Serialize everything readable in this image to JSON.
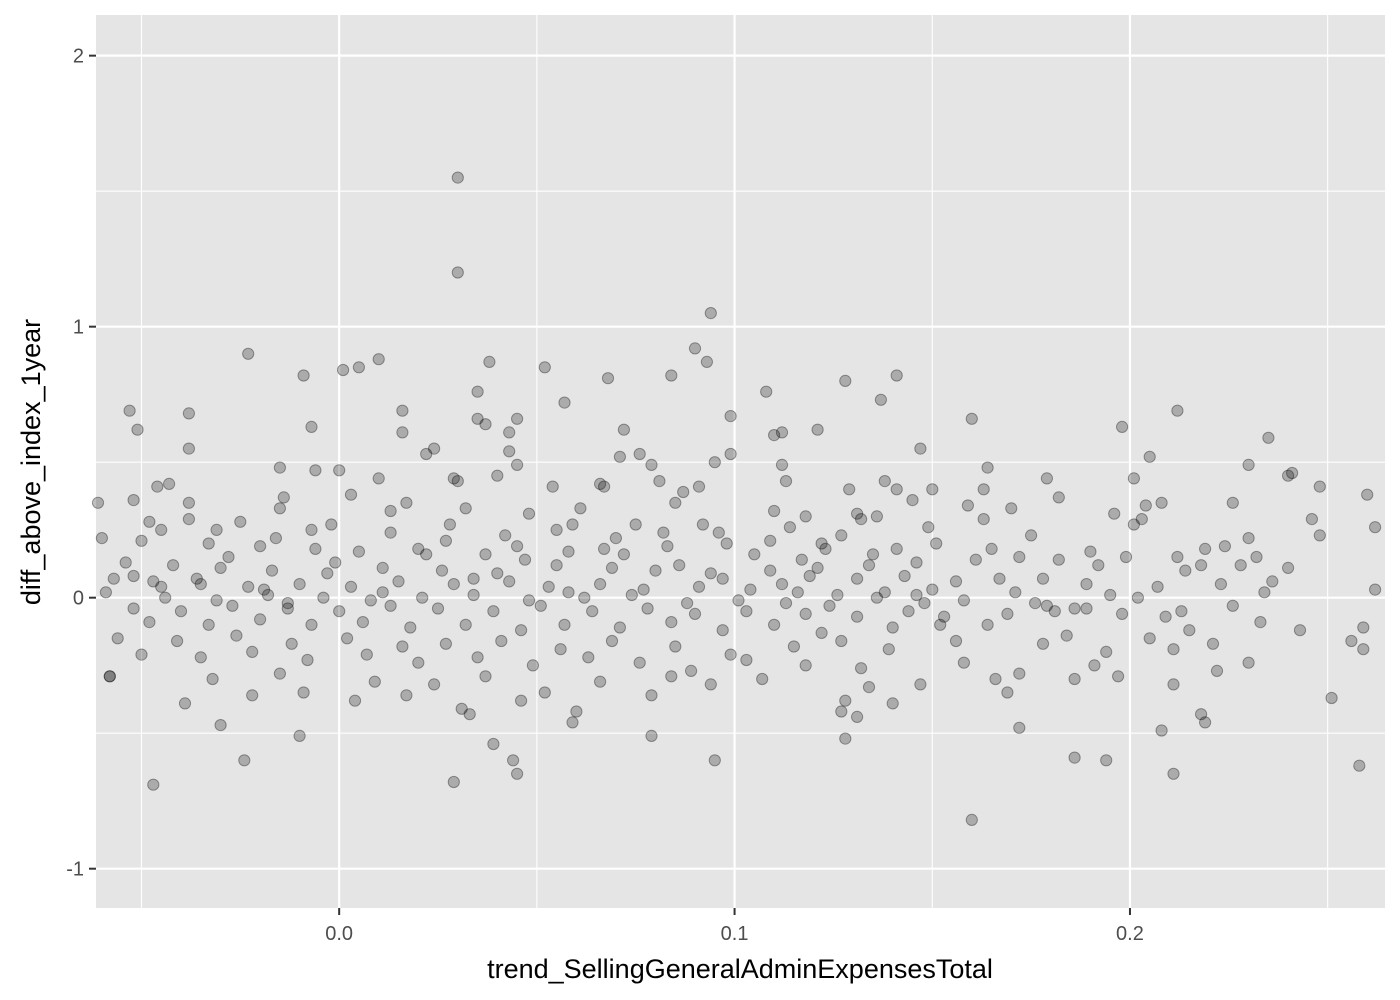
{
  "chart_data": {
    "type": "scatter",
    "xlabel": "trend_SellingGeneralAdminExpensesTotal",
    "ylabel": "diff_above_index_1year",
    "xlim": [
      -0.0615,
      0.2645
    ],
    "ylim": [
      -1.145,
      2.15
    ],
    "x_ticks": [
      0.0,
      0.1,
      0.2
    ],
    "x_tick_labels": [
      "0.0",
      "0.1",
      "0.2"
    ],
    "y_ticks": [
      -1,
      0,
      1,
      2
    ],
    "y_tick_labels": [
      "-1",
      "0",
      "1",
      "2"
    ],
    "grid": true,
    "legend": "none",
    "colors": {
      "panel_background": "#e5e5e5",
      "grid_line": "#ffffff",
      "point": "#000000",
      "tick_label": "#4d4d4d"
    },
    "point_alpha": 0.25,
    "points": [
      [
        0.03,
        1.55
      ],
      [
        0.03,
        1.2
      ],
      [
        0.094,
        1.05
      ],
      [
        0.09,
        0.92
      ],
      [
        0.093,
        0.87
      ],
      [
        -0.023,
        0.9
      ],
      [
        0.01,
        0.88
      ],
      [
        0.005,
        0.85
      ],
      [
        0.001,
        0.84
      ],
      [
        -0.009,
        0.82
      ],
      [
        0.052,
        0.85
      ],
      [
        0.084,
        0.82
      ],
      [
        0.068,
        0.81
      ],
      [
        0.128,
        0.8
      ],
      [
        0.141,
        0.82
      ],
      [
        0.038,
        0.87
      ],
      [
        0.035,
        0.76
      ],
      [
        0.108,
        0.76
      ],
      [
        0.137,
        0.73
      ],
      [
        0.057,
        0.72
      ],
      [
        0.016,
        0.69
      ],
      [
        0.212,
        0.69
      ],
      [
        -0.038,
        0.68
      ],
      [
        -0.053,
        0.69
      ],
      [
        0.035,
        0.66
      ],
      [
        0.045,
        0.66
      ],
      [
        0.099,
        0.67
      ],
      [
        0.16,
        0.66
      ],
      [
        -0.007,
        0.63
      ],
      [
        0.037,
        0.64
      ],
      [
        -0.051,
        0.62
      ],
      [
        0.016,
        0.61
      ],
      [
        0.043,
        0.61
      ],
      [
        0.072,
        0.62
      ],
      [
        0.112,
        0.61
      ],
      [
        0.11,
        0.6
      ],
      [
        0.121,
        0.62
      ],
      [
        0.198,
        0.63
      ],
      [
        0.235,
        0.59
      ],
      [
        0.022,
        0.53
      ],
      [
        0.024,
        0.55
      ],
      [
        -0.038,
        0.55
      ],
      [
        0.043,
        0.54
      ],
      [
        0.076,
        0.53
      ],
      [
        0.071,
        0.52
      ],
      [
        0.099,
        0.53
      ],
      [
        0.147,
        0.55
      ],
      [
        0.205,
        0.52
      ],
      [
        0.095,
        0.5
      ],
      [
        0.045,
        0.49
      ],
      [
        -0.015,
        0.48
      ],
      [
        -0.006,
        0.47
      ],
      [
        0.0,
        0.47
      ],
      [
        0.079,
        0.49
      ],
      [
        0.112,
        0.49
      ],
      [
        0.164,
        0.48
      ],
      [
        0.23,
        0.49
      ],
      [
        0.241,
        0.46
      ],
      [
        0.01,
        0.44
      ],
      [
        0.029,
        0.44
      ],
      [
        0.03,
        0.43
      ],
      [
        0.081,
        0.43
      ],
      [
        0.113,
        0.43
      ],
      [
        0.138,
        0.43
      ],
      [
        0.179,
        0.44
      ],
      [
        0.201,
        0.44
      ],
      [
        0.24,
        0.45
      ],
      [
        -0.046,
        0.41
      ],
      [
        -0.043,
        0.42
      ],
      [
        0.054,
        0.41
      ],
      [
        0.129,
        0.4
      ],
      [
        0.141,
        0.4
      ],
      [
        0.15,
        0.4
      ],
      [
        0.163,
        0.4
      ],
      [
        0.248,
        0.41
      ],
      [
        0.26,
        0.38
      ],
      [
        0.066,
        0.42
      ],
      [
        -0.014,
        0.37
      ],
      [
        0.003,
        0.38
      ],
      [
        0.087,
        0.39
      ],
      [
        -0.038,
        0.35
      ],
      [
        0.017,
        0.35
      ],
      [
        0.032,
        0.33
      ],
      [
        0.085,
        0.35
      ],
      [
        0.131,
        0.31
      ],
      [
        0.145,
        0.36
      ],
      [
        0.204,
        0.34
      ],
      [
        0.208,
        0.35
      ],
      [
        0.226,
        0.35
      ],
      [
        -0.052,
        0.36
      ],
      [
        -0.061,
        0.35
      ],
      [
        0.061,
        0.33
      ],
      [
        0.11,
        0.32
      ],
      [
        0.136,
        0.3
      ],
      [
        0.149,
        0.26
      ],
      [
        0.17,
        0.33
      ],
      [
        0.196,
        0.31
      ],
      [
        0.203,
        0.29
      ],
      [
        0.23,
        0.22
      ],
      [
        0.246,
        0.29
      ],
      [
        0.248,
        0.23
      ],
      [
        0.262,
        0.26
      ],
      [
        -0.045,
        0.25
      ],
      [
        -0.038,
        0.29
      ],
      [
        -0.025,
        0.28
      ],
      [
        -0.007,
        0.25
      ],
      [
        0.028,
        0.27
      ],
      [
        0.048,
        0.31
      ],
      [
        0.059,
        0.27
      ],
      [
        0.075,
        0.27
      ],
      [
        0.092,
        0.27
      ],
      [
        0.114,
        0.26
      ],
      [
        0.127,
        0.23
      ],
      [
        0.151,
        0.2
      ],
      [
        0.165,
        0.18
      ],
      [
        0.175,
        0.23
      ],
      [
        0.219,
        0.18
      ],
      [
        0.224,
        0.19
      ],
      [
        0.228,
        0.12
      ],
      [
        -0.06,
        0.22
      ],
      [
        -0.05,
        0.21
      ],
      [
        -0.033,
        0.2
      ],
      [
        -0.02,
        0.19
      ],
      [
        -0.006,
        0.18
      ],
      [
        0.005,
        0.17
      ],
      [
        0.02,
        0.18
      ],
      [
        0.037,
        0.16
      ],
      [
        0.045,
        0.19
      ],
      [
        0.058,
        0.17
      ],
      [
        0.067,
        0.18
      ],
      [
        0.083,
        0.19
      ],
      [
        0.098,
        0.2
      ],
      [
        0.105,
        0.16
      ],
      [
        0.117,
        0.14
      ],
      [
        0.123,
        0.18
      ],
      [
        0.135,
        0.16
      ],
      [
        0.146,
        0.13
      ],
      [
        0.161,
        0.14
      ],
      [
        0.172,
        0.15
      ],
      [
        0.182,
        0.14
      ],
      [
        0.192,
        0.12
      ],
      [
        0.199,
        0.15
      ],
      [
        0.212,
        0.15
      ],
      [
        0.218,
        0.12
      ],
      [
        0.232,
        0.15
      ],
      [
        0.24,
        0.11
      ],
      [
        -0.054,
        0.13
      ],
      [
        -0.042,
        0.12
      ],
      [
        -0.03,
        0.11
      ],
      [
        -0.017,
        0.1
      ],
      [
        -0.003,
        0.09
      ],
      [
        0.011,
        0.11
      ],
      [
        0.026,
        0.1
      ],
      [
        0.04,
        0.09
      ],
      [
        0.055,
        0.12
      ],
      [
        0.069,
        0.11
      ],
      [
        0.08,
        0.1
      ],
      [
        0.094,
        0.09
      ],
      [
        0.109,
        0.1
      ],
      [
        0.119,
        0.08
      ],
      [
        0.131,
        0.07
      ],
      [
        0.143,
        0.08
      ],
      [
        0.156,
        0.06
      ],
      [
        0.167,
        0.07
      ],
      [
        0.178,
        0.07
      ],
      [
        0.189,
        0.05
      ],
      [
        0.207,
        0.04
      ],
      [
        0.223,
        0.05
      ],
      [
        -0.057,
        0.07
      ],
      [
        -0.047,
        0.06
      ],
      [
        -0.035,
        0.05
      ],
      [
        -0.023,
        0.04
      ],
      [
        -0.01,
        0.05
      ],
      [
        0.003,
        0.04
      ],
      [
        0.015,
        0.06
      ],
      [
        0.029,
        0.05
      ],
      [
        0.043,
        0.06
      ],
      [
        0.053,
        0.04
      ],
      [
        0.066,
        0.05
      ],
      [
        0.077,
        0.03
      ],
      [
        0.091,
        0.04
      ],
      [
        0.104,
        0.03
      ],
      [
        0.116,
        0.02
      ],
      [
        0.126,
        0.01
      ],
      [
        0.138,
        0.02
      ],
      [
        0.15,
        0.03
      ],
      [
        0.171,
        0.02
      ],
      [
        0.195,
        0.01
      ],
      [
        0.234,
        0.02
      ],
      [
        0.262,
        0.03
      ],
      [
        -0.059,
        0.02
      ],
      [
        -0.044,
        0.0
      ],
      [
        -0.031,
        -0.01
      ],
      [
        -0.018,
        0.01
      ],
      [
        -0.004,
        0.0
      ],
      [
        0.008,
        -0.01
      ],
      [
        0.021,
        0.0
      ],
      [
        0.034,
        0.01
      ],
      [
        0.048,
        -0.01
      ],
      [
        0.062,
        0.0
      ],
      [
        0.074,
        0.01
      ],
      [
        0.088,
        -0.02
      ],
      [
        0.101,
        -0.01
      ],
      [
        0.113,
        -0.02
      ],
      [
        0.124,
        -0.03
      ],
      [
        0.136,
        0.0
      ],
      [
        0.148,
        -0.02
      ],
      [
        0.158,
        -0.01
      ],
      [
        0.176,
        -0.02
      ],
      [
        0.186,
        -0.04
      ],
      [
        -0.052,
        -0.04
      ],
      [
        -0.04,
        -0.05
      ],
      [
        -0.027,
        -0.03
      ],
      [
        -0.013,
        -0.04
      ],
      [
        0.0,
        -0.05
      ],
      [
        0.013,
        -0.03
      ],
      [
        0.025,
        -0.04
      ],
      [
        0.039,
        -0.05
      ],
      [
        0.051,
        -0.03
      ],
      [
        0.064,
        -0.05
      ],
      [
        0.078,
        -0.04
      ],
      [
        0.09,
        -0.06
      ],
      [
        0.103,
        -0.05
      ],
      [
        0.118,
        -0.06
      ],
      [
        0.131,
        -0.07
      ],
      [
        0.144,
        -0.05
      ],
      [
        0.169,
        -0.06
      ],
      [
        0.181,
        -0.05
      ],
      [
        0.198,
        -0.06
      ],
      [
        0.213,
        -0.05
      ],
      [
        0.233,
        -0.09
      ],
      [
        -0.048,
        -0.09
      ],
      [
        -0.033,
        -0.1
      ],
      [
        -0.02,
        -0.08
      ],
      [
        -0.007,
        -0.1
      ],
      [
        0.006,
        -0.09
      ],
      [
        0.018,
        -0.11
      ],
      [
        0.032,
        -0.1
      ],
      [
        0.046,
        -0.12
      ],
      [
        0.057,
        -0.1
      ],
      [
        0.071,
        -0.11
      ],
      [
        0.084,
        -0.09
      ],
      [
        0.097,
        -0.12
      ],
      [
        0.11,
        -0.1
      ],
      [
        0.122,
        -0.13
      ],
      [
        0.14,
        -0.11
      ],
      [
        0.152,
        -0.1
      ],
      [
        0.184,
        -0.14
      ],
      [
        0.205,
        -0.15
      ],
      [
        0.215,
        -0.12
      ],
      [
        -0.056,
        -0.15
      ],
      [
        -0.041,
        -0.16
      ],
      [
        -0.026,
        -0.14
      ],
      [
        -0.012,
        -0.17
      ],
      [
        0.002,
        -0.15
      ],
      [
        0.016,
        -0.18
      ],
      [
        0.027,
        -0.17
      ],
      [
        0.041,
        -0.16
      ],
      [
        0.056,
        -0.19
      ],
      [
        0.069,
        -0.16
      ],
      [
        0.085,
        -0.18
      ],
      [
        0.099,
        -0.21
      ],
      [
        0.115,
        -0.18
      ],
      [
        0.127,
        -0.16
      ],
      [
        0.139,
        -0.19
      ],
      [
        0.156,
        -0.16
      ],
      [
        0.178,
        -0.17
      ],
      [
        0.194,
        -0.2
      ],
      [
        0.211,
        -0.19
      ],
      [
        0.221,
        -0.17
      ],
      [
        -0.05,
        -0.21
      ],
      [
        -0.035,
        -0.22
      ],
      [
        -0.022,
        -0.2
      ],
      [
        -0.008,
        -0.23
      ],
      [
        0.007,
        -0.21
      ],
      [
        0.02,
        -0.24
      ],
      [
        0.035,
        -0.22
      ],
      [
        0.049,
        -0.25
      ],
      [
        0.063,
        -0.22
      ],
      [
        0.076,
        -0.24
      ],
      [
        0.089,
        -0.27
      ],
      [
        0.103,
        -0.23
      ],
      [
        0.118,
        -0.25
      ],
      [
        0.132,
        -0.26
      ],
      [
        0.158,
        -0.24
      ],
      [
        0.172,
        -0.28
      ],
      [
        0.191,
        -0.25
      ],
      [
        0.222,
        -0.27
      ],
      [
        0.23,
        -0.24
      ],
      [
        -0.058,
        -0.29
      ],
      [
        -0.032,
        -0.3
      ],
      [
        -0.015,
        -0.28
      ],
      [
        0.009,
        -0.31
      ],
      [
        0.024,
        -0.32
      ],
      [
        0.037,
        -0.29
      ],
      [
        0.052,
        -0.35
      ],
      [
        0.066,
        -0.31
      ],
      [
        0.084,
        -0.29
      ],
      [
        0.094,
        -0.32
      ],
      [
        0.107,
        -0.3
      ],
      [
        0.134,
        -0.33
      ],
      [
        0.147,
        -0.32
      ],
      [
        0.166,
        -0.3
      ],
      [
        0.186,
        -0.3
      ],
      [
        0.197,
        -0.29
      ],
      [
        0.211,
        -0.32
      ],
      [
        -0.039,
        -0.39
      ],
      [
        -0.022,
        -0.36
      ],
      [
        -0.009,
        -0.35
      ],
      [
        0.004,
        -0.38
      ],
      [
        0.017,
        -0.36
      ],
      [
        0.031,
        -0.41
      ],
      [
        0.046,
        -0.38
      ],
      [
        0.06,
        -0.42
      ],
      [
        0.079,
        -0.36
      ],
      [
        0.128,
        -0.38
      ],
      [
        0.14,
        -0.39
      ],
      [
        0.169,
        -0.35
      ],
      [
        0.251,
        -0.37
      ],
      [
        -0.03,
        -0.47
      ],
      [
        -0.01,
        -0.51
      ],
      [
        0.033,
        -0.43
      ],
      [
        0.079,
        -0.51
      ],
      [
        0.059,
        -0.46
      ],
      [
        0.127,
        -0.42
      ],
      [
        0.131,
        -0.44
      ],
      [
        0.172,
        -0.48
      ],
      [
        0.208,
        -0.49
      ],
      [
        0.218,
        -0.43
      ],
      [
        -0.024,
        -0.6
      ],
      [
        0.039,
        -0.54
      ],
      [
        0.044,
        -0.6
      ],
      [
        0.045,
        -0.65
      ],
      [
        0.095,
        -0.6
      ],
      [
        0.186,
        -0.59
      ],
      [
        0.194,
        -0.6
      ],
      [
        0.211,
        -0.65
      ],
      [
        0.258,
        -0.62
      ],
      [
        -0.047,
        -0.69
      ],
      [
        0.029,
        -0.68
      ],
      [
        0.16,
        -0.82
      ],
      [
        0.128,
        -0.52
      ],
      [
        0.219,
        -0.46
      ],
      [
        0.256,
        -0.16
      ],
      [
        0.259,
        -0.19
      ],
      [
        0.259,
        -0.11
      ],
      [
        0.243,
        -0.12
      ],
      [
        -0.058,
        -0.29
      ],
      [
        -0.052,
        0.08
      ],
      [
        -0.015,
        0.33
      ],
      [
        0.013,
        0.32
      ],
      [
        0.04,
        0.45
      ],
      [
        0.067,
        0.41
      ],
      [
        0.091,
        0.41
      ],
      [
        0.118,
        0.3
      ],
      [
        0.132,
        0.29
      ],
      [
        0.159,
        0.34
      ],
      [
        0.163,
        0.29
      ],
      [
        0.182,
        0.37
      ],
      [
        0.19,
        0.17
      ],
      [
        0.201,
        0.27
      ],
      [
        0.214,
        0.1
      ],
      [
        0.236,
        0.06
      ],
      [
        -0.045,
        0.04
      ],
      [
        -0.036,
        0.07
      ],
      [
        -0.028,
        0.15
      ],
      [
        -0.019,
        0.03
      ],
      [
        -0.013,
        -0.02
      ],
      [
        -0.001,
        0.13
      ],
      [
        0.011,
        0.02
      ],
      [
        0.022,
        0.16
      ],
      [
        0.034,
        0.07
      ],
      [
        0.047,
        0.14
      ],
      [
        0.058,
        0.02
      ],
      [
        0.072,
        0.16
      ],
      [
        0.086,
        0.12
      ],
      [
        0.097,
        0.07
      ],
      [
        0.112,
        0.05
      ],
      [
        0.121,
        0.11
      ],
      [
        0.134,
        0.12
      ],
      [
        0.146,
        0.01
      ],
      [
        0.153,
        -0.07
      ],
      [
        0.164,
        -0.1
      ],
      [
        0.179,
        -0.03
      ],
      [
        0.189,
        -0.04
      ],
      [
        0.202,
        0.0
      ],
      [
        0.209,
        -0.07
      ],
      [
        0.226,
        -0.03
      ],
      [
        -0.048,
        0.28
      ],
      [
        -0.031,
        0.25
      ],
      [
        -0.016,
        0.22
      ],
      [
        -0.002,
        0.27
      ],
      [
        0.013,
        0.24
      ],
      [
        0.027,
        0.21
      ],
      [
        0.042,
        0.23
      ],
      [
        0.055,
        0.25
      ],
      [
        0.07,
        0.22
      ],
      [
        0.082,
        0.24
      ],
      [
        0.096,
        0.24
      ],
      [
        0.109,
        0.21
      ],
      [
        0.122,
        0.2
      ],
      [
        0.141,
        0.18
      ]
    ]
  }
}
